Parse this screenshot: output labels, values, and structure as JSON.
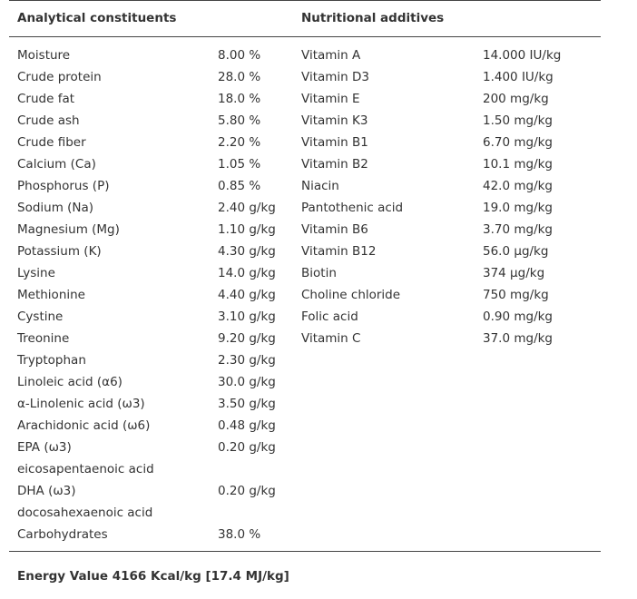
{
  "header": {
    "left": "Analytical constituents",
    "right": "Nutritional additives"
  },
  "analytical": [
    {
      "name": "Moisture",
      "value": "8.00 %"
    },
    {
      "name": "Crude protein",
      "value": "28.0 %"
    },
    {
      "name": "Crude fat",
      "value": "18.0 %"
    },
    {
      "name": "Crude ash",
      "value": "5.80 %"
    },
    {
      "name": "Crude fiber",
      "value": "2.20 %"
    },
    {
      "name": "Calcium (Ca)",
      "value": "1.05 %"
    },
    {
      "name": "Phosphorus (P)",
      "value": "0.85 %"
    },
    {
      "name": "Sodium (Na)",
      "value": "2.40 g/kg"
    },
    {
      "name": "Magnesium (Mg)",
      "value": "1.10 g/kg"
    },
    {
      "name": "Potassium (K)",
      "value": "4.30 g/kg"
    },
    {
      "name": "Lysine",
      "value": "14.0 g/kg"
    },
    {
      "name": "Methionine",
      "value": "4.40 g/kg"
    },
    {
      "name": "Cystine",
      "value": "3.10 g/kg"
    },
    {
      "name": "Treonine",
      "value": "9.20 g/kg"
    },
    {
      "name": "Tryptophan",
      "value": "2.30 g/kg"
    },
    {
      "name": "Linoleic acid (α6)",
      "value": "30.0 g/kg"
    },
    {
      "name": "α-Linolenic acid (ω3)",
      "value": "3.50 g/kg"
    },
    {
      "name": "Arachidonic acid (ω6)",
      "value": "0.48 g/kg"
    },
    {
      "name": "EPA (ω3)",
      "value": "0.20 g/kg",
      "detail": "eicosapentaenoic acid"
    },
    {
      "name": "DHA (ω3)",
      "value": "0.20 g/kg",
      "detail": "docosahexaenoic acid"
    },
    {
      "name": "Carbohydrates",
      "value": "38.0 %"
    }
  ],
  "additives": [
    {
      "name": "Vitamin A",
      "value": "14.000 IU/kg"
    },
    {
      "name": "Vitamin D3",
      "value": "1.400 IU/kg"
    },
    {
      "name": "Vitamin E",
      "value": "200 mg/kg"
    },
    {
      "name": "Vitamin K3",
      "value": "1.50 mg/kg"
    },
    {
      "name": "Vitamin B1",
      "value": "6.70 mg/kg"
    },
    {
      "name": "Vitamin B2",
      "value": "10.1 mg/kg"
    },
    {
      "name": "Niacin",
      "value": "42.0 mg/kg"
    },
    {
      "name": "Pantothenic acid",
      "value": "19.0 mg/kg"
    },
    {
      "name": "Vitamin B6",
      "value": "3.70 mg/kg"
    },
    {
      "name": "Vitamin B12",
      "value": "56.0 µg/kg"
    },
    {
      "name": "Biotin",
      "value": "374 µg/kg"
    },
    {
      "name": "Choline chloride",
      "value": "750 mg/kg"
    },
    {
      "name": "Folic acid",
      "value": "0.90 mg/kg"
    },
    {
      "name": "Vitamin C",
      "value": "37.0 mg/kg"
    }
  ],
  "footer": "Energy Value 4166 Kcal/kg [17.4 MJ/kg]"
}
